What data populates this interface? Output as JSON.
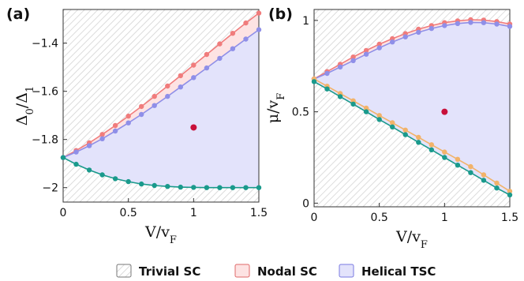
{
  "colors": {
    "nodal_line": "#f07c7c",
    "nodal_fill": "#fde3e3",
    "helical_line": "#8f8fe8",
    "helical_fill": "#e3e3fb",
    "lower_line": "#1a9a8c",
    "lower_orange": "#f2b36a",
    "marker": "#c8103a",
    "hatch": "#d4d4d4"
  },
  "legend": {
    "items": [
      {
        "label": "Trivial SC",
        "swatch": "hatch"
      },
      {
        "label": "Nodal SC",
        "swatch": "nodal"
      },
      {
        "label": "Helical TSC",
        "swatch": "helical"
      }
    ]
  },
  "chart_data": [
    {
      "type": "line",
      "panel_label": "(a)",
      "xlabel": "V/v_F",
      "ylabel": "Δ0/Δ1",
      "xlim": [
        0,
        1.5
      ],
      "ylim": [
        -2.06,
        -1.26
      ],
      "xticks": [
        0,
        0.5,
        1,
        1.5
      ],
      "xtick_labels": [
        "0",
        "0.5",
        "1",
        "1.5"
      ],
      "yticks": [
        -2.0,
        -1.8,
        -1.6,
        -1.4
      ],
      "ytick_labels": [
        "−2",
        "−1.8",
        "−1.6",
        "−1.4"
      ],
      "x": [
        0,
        0.1,
        0.2,
        0.3,
        0.4,
        0.5,
        0.6,
        0.7,
        0.8,
        0.9,
        1.0,
        1.1,
        1.2,
        1.3,
        1.4,
        1.5
      ],
      "series": [
        {
          "key": "nodal",
          "values": [
            -1.875,
            -1.846,
            -1.814,
            -1.779,
            -1.742,
            -1.703,
            -1.663,
            -1.621,
            -1.578,
            -1.535,
            -1.491,
            -1.447,
            -1.403,
            -1.359,
            -1.316,
            -1.275
          ]
        },
        {
          "key": "helical",
          "values": [
            -1.875,
            -1.852,
            -1.826,
            -1.797,
            -1.765,
            -1.731,
            -1.696,
            -1.659,
            -1.621,
            -1.582,
            -1.543,
            -1.503,
            -1.463,
            -1.423,
            -1.383,
            -1.344
          ]
        },
        {
          "key": "lower",
          "values": [
            -1.875,
            -1.903,
            -1.927,
            -1.947,
            -1.963,
            -1.975,
            -1.985,
            -1.991,
            -1.995,
            -1.998,
            -1.999,
            -2.0,
            -2.0,
            -2.0,
            -2.0,
            -2.0
          ]
        }
      ],
      "marker": {
        "x": 1.0,
        "y": -1.75
      }
    },
    {
      "type": "line",
      "panel_label": "(b)",
      "xlabel": "V/v_F",
      "ylabel": "μ/v_F",
      "xlim": [
        0,
        1.5
      ],
      "ylim": [
        -0.02,
        1.06
      ],
      "xticks": [
        0,
        0.5,
        1,
        1.5
      ],
      "xtick_labels": [
        "0",
        "0.5",
        "1",
        "1.5"
      ],
      "yticks": [
        0,
        0.5,
        1
      ],
      "ytick_labels": [
        "0",
        "0.5",
        "1"
      ],
      "x": [
        0,
        0.1,
        0.2,
        0.3,
        0.4,
        0.5,
        0.6,
        0.7,
        0.8,
        0.9,
        1.0,
        1.1,
        1.2,
        1.3,
        1.4,
        1.5
      ],
      "series": [
        {
          "key": "nodal",
          "values": [
            0.68,
            0.72,
            0.76,
            0.8,
            0.836,
            0.87,
            0.9,
            0.928,
            0.952,
            0.972,
            0.988,
            0.998,
            1.004,
            1.002,
            0.994,
            0.98
          ]
        },
        {
          "key": "helical",
          "values": [
            0.68,
            0.71,
            0.745,
            0.78,
            0.815,
            0.85,
            0.882,
            0.91,
            0.935,
            0.956,
            0.972,
            0.983,
            0.989,
            0.988,
            0.98,
            0.967
          ]
        },
        {
          "key": "lower_orange",
          "values": [
            0.68,
            0.64,
            0.6,
            0.56,
            0.52,
            0.48,
            0.44,
            0.4,
            0.36,
            0.32,
            0.28,
            0.24,
            0.2,
            0.155,
            0.11,
            0.065
          ]
        },
        {
          "key": "lower",
          "values": [
            0.665,
            0.625,
            0.583,
            0.542,
            0.5,
            0.458,
            0.417,
            0.375,
            0.333,
            0.292,
            0.25,
            0.208,
            0.167,
            0.125,
            0.083,
            0.045
          ]
        }
      ],
      "marker": {
        "x": 1.0,
        "y": 0.5
      }
    }
  ]
}
